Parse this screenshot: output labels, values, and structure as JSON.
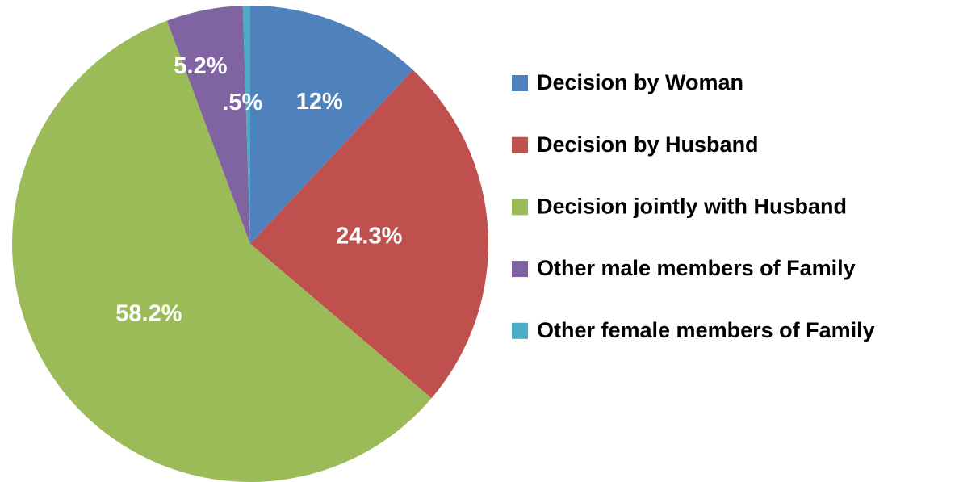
{
  "chart_data": {
    "type": "pie",
    "categories": [
      "Decision by Woman",
      "Decision by Husband",
      "Decision jointly with Husband",
      "Other male members of Family",
      "Other female members of Family"
    ],
    "values": [
      12,
      24.3,
      58.2,
      5.2,
      0.5
    ],
    "value_labels": [
      "12%",
      "24.3%",
      "58.2%",
      "5.2%",
      ".5%"
    ],
    "colors": [
      "#4f81bd",
      "#c0504d",
      "#9bbb59",
      "#8064a2",
      "#4bacc6"
    ],
    "legend": "right"
  }
}
